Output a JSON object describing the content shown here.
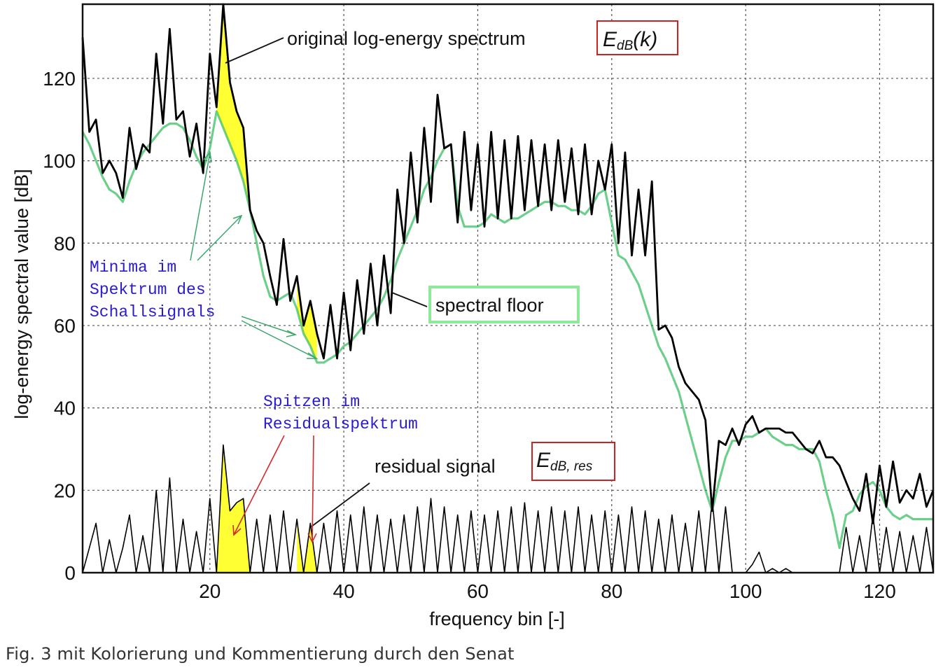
{
  "caption": "Fig. 3 mit Kolorierung und Kommentierung durch den Senat",
  "chart_data": {
    "type": "line",
    "xlabel": "frequency bin [-]",
    "ylabel": "log-energy spectral value [dB]",
    "xlim": [
      1,
      128
    ],
    "ylim": [
      0,
      138
    ],
    "xticks": [
      20,
      40,
      60,
      80,
      100,
      120
    ],
    "yticks": [
      0,
      20,
      40,
      60,
      80,
      100,
      120
    ],
    "grid": true,
    "series": [
      {
        "name": "original log-energy spectrum",
        "color": "#000000",
        "x": [
          1,
          2,
          3,
          4,
          5,
          6,
          7,
          8,
          9,
          10,
          11,
          12,
          13,
          14,
          15,
          16,
          17,
          18,
          19,
          20,
          21,
          22,
          23,
          24,
          25,
          26,
          27,
          28,
          29,
          30,
          31,
          32,
          33,
          34,
          35,
          36,
          37,
          38,
          39,
          40,
          41,
          42,
          43,
          44,
          45,
          46,
          47,
          48,
          49,
          50,
          51,
          52,
          53,
          54,
          55,
          56,
          57,
          58,
          59,
          60,
          61,
          62,
          63,
          64,
          65,
          66,
          67,
          68,
          69,
          70,
          71,
          72,
          73,
          74,
          75,
          76,
          77,
          78,
          79,
          80,
          81,
          82,
          83,
          84,
          85,
          86,
          87,
          88,
          89,
          90,
          91,
          92,
          93,
          94,
          95,
          96,
          97,
          98,
          99,
          100,
          101,
          102,
          103,
          104,
          105,
          106,
          107,
          108,
          109,
          110,
          111,
          112,
          113,
          114,
          115,
          116,
          117,
          118,
          119,
          120,
          121,
          122,
          123,
          124,
          125,
          126,
          127,
          128
        ],
        "y": [
          130,
          107,
          110,
          97,
          100,
          97,
          91,
          108,
          98,
          104,
          102,
          126,
          109,
          132,
          110,
          112,
          101,
          109,
          97,
          126,
          113,
          138,
          119,
          112,
          108,
          88,
          83,
          80,
          72,
          65,
          81,
          66,
          72,
          60,
          66,
          58,
          52,
          65,
          52,
          68,
          54,
          71,
          58,
          75,
          60,
          77,
          63,
          93,
          80,
          102,
          85,
          108,
          90,
          116,
          103,
          104,
          85,
          107,
          88,
          104,
          84,
          107,
          86,
          105,
          86,
          106,
          88,
          105,
          89,
          104,
          88,
          105,
          90,
          103,
          87,
          104,
          87,
          100,
          93,
          104,
          80,
          102,
          77,
          93,
          77,
          95,
          59,
          60,
          57,
          50,
          46,
          44,
          42,
          37,
          15,
          32,
          31,
          35,
          31,
          36,
          38,
          34,
          35,
          35,
          35,
          34,
          34,
          32,
          30,
          29,
          32,
          28,
          28,
          26,
          22,
          18,
          15,
          24,
          12,
          26,
          16,
          27,
          17,
          20,
          18,
          24,
          16,
          20
        ]
      },
      {
        "name": "spectral floor",
        "color": "#4de07a",
        "x": [
          1,
          2,
          3,
          4,
          5,
          6,
          7,
          8,
          9,
          10,
          11,
          12,
          13,
          14,
          15,
          16,
          17,
          18,
          19,
          20,
          21,
          22,
          23,
          24,
          25,
          26,
          27,
          28,
          29,
          30,
          31,
          32,
          33,
          34,
          35,
          36,
          37,
          38,
          39,
          40,
          41,
          42,
          43,
          44,
          45,
          46,
          47,
          48,
          49,
          50,
          51,
          52,
          53,
          54,
          55,
          56,
          57,
          58,
          59,
          60,
          61,
          62,
          63,
          64,
          65,
          66,
          67,
          68,
          69,
          70,
          71,
          72,
          73,
          74,
          75,
          76,
          77,
          78,
          79,
          80,
          81,
          82,
          83,
          84,
          85,
          86,
          87,
          88,
          89,
          90,
          91,
          92,
          93,
          94,
          95,
          96,
          97,
          98,
          99,
          100,
          101,
          102,
          103,
          104,
          105,
          106,
          107,
          108,
          109,
          110,
          111,
          112,
          113,
          114,
          115,
          116,
          117,
          118,
          119,
          120,
          121,
          122,
          123,
          124,
          125,
          126,
          127,
          128
        ],
        "y": [
          107,
          104,
          100,
          96,
          93,
          92,
          90,
          95,
          99,
          102,
          104,
          106,
          108,
          109,
          109,
          108,
          105,
          101,
          98,
          103,
          112,
          108,
          104,
          100,
          95,
          88,
          80,
          72,
          67,
          66,
          67,
          68,
          64,
          58,
          55,
          51,
          51,
          52,
          53,
          55,
          56,
          58,
          60,
          62,
          64,
          67,
          71,
          76,
          80,
          84,
          88,
          93,
          96,
          100,
          103,
          104,
          89,
          84,
          84,
          84,
          85,
          87,
          86,
          85,
          86,
          86,
          87,
          88,
          89,
          90,
          90,
          89,
          89,
          88,
          88,
          87,
          89,
          92,
          93,
          85,
          77,
          76,
          73,
          70,
          65,
          60,
          55,
          52,
          48,
          44,
          38,
          32,
          26,
          20,
          15,
          22,
          28,
          32,
          32,
          33,
          33,
          34,
          35,
          33,
          32,
          31,
          31,
          30,
          30,
          30,
          27,
          20,
          14,
          6,
          14,
          15,
          19,
          21,
          22,
          20,
          16,
          14,
          13,
          14,
          13,
          13,
          13,
          13
        ]
      },
      {
        "name": "residual signal",
        "color": "#000000",
        "x": [
          1,
          2,
          3,
          4,
          5,
          6,
          7,
          8,
          9,
          10,
          11,
          12,
          13,
          14,
          15,
          16,
          17,
          18,
          19,
          20,
          21,
          22,
          23,
          24,
          25,
          26,
          27,
          28,
          29,
          30,
          31,
          32,
          33,
          34,
          35,
          36,
          37,
          38,
          39,
          40,
          41,
          42,
          43,
          44,
          45,
          46,
          47,
          48,
          49,
          50,
          51,
          52,
          53,
          54,
          55,
          56,
          57,
          58,
          59,
          60,
          61,
          62,
          63,
          64,
          65,
          66,
          67,
          68,
          69,
          70,
          71,
          72,
          73,
          74,
          75,
          76,
          77,
          78,
          79,
          80,
          81,
          82,
          83,
          84,
          85,
          86,
          87,
          88,
          89,
          90,
          91,
          92,
          93,
          94,
          95,
          96,
          97,
          98,
          99,
          100,
          101,
          102,
          103,
          104,
          105,
          106,
          107,
          108,
          109,
          110,
          111,
          112,
          113,
          114,
          115,
          116,
          117,
          118,
          119,
          120,
          121,
          122,
          123,
          124,
          125,
          126,
          127,
          128
        ],
        "y": [
          0,
          6,
          12,
          0,
          8,
          0,
          6,
          14,
          0,
          9,
          0,
          20,
          0,
          23,
          0,
          13,
          0,
          10,
          0,
          18,
          0,
          31,
          15,
          17,
          18,
          0,
          13,
          0,
          14,
          0,
          15,
          0,
          13,
          0,
          12,
          0,
          12,
          0,
          15,
          0,
          14,
          0,
          16,
          0,
          14,
          0,
          13,
          0,
          14,
          0,
          16,
          0,
          18,
          0,
          16,
          0,
          14,
          0,
          15,
          0,
          14,
          0,
          15,
          0,
          16,
          0,
          17,
          0,
          15,
          0,
          16,
          0,
          15,
          0,
          16,
          0,
          14,
          0,
          15,
          0,
          14,
          0,
          16,
          0,
          15,
          0,
          13,
          0,
          14,
          0,
          12,
          0,
          15,
          0,
          18,
          0,
          16,
          0,
          0,
          0,
          2,
          5,
          0,
          1,
          0,
          1,
          0,
          0,
          0,
          0,
          0,
          0,
          0,
          0,
          11,
          0,
          9,
          0,
          14,
          0,
          11,
          0,
          10,
          0,
          9,
          0,
          11,
          0
        ]
      }
    ],
    "highlight_regions": [
      {
        "series": "original log-energy spectrum",
        "x_range": [
          21,
          26
        ],
        "color": "#ffff33"
      },
      {
        "series": "original log-energy spectrum",
        "x_range": [
          33,
          36
        ],
        "color": "#ffff33"
      },
      {
        "series": "residual signal",
        "x_range": [
          21,
          26
        ],
        "color": "#ffff33"
      },
      {
        "series": "residual signal",
        "x_range": [
          33,
          36
        ],
        "color": "#ffff33"
      }
    ],
    "annotations": {
      "original": {
        "text": "original log-energy spectrum",
        "eq_main": "E",
        "eq_sub": "dB",
        "eq_suffix": "(k)"
      },
      "floor": {
        "text": "spectral floor"
      },
      "residual": {
        "text": "residual signal",
        "eq_main": "E",
        "eq_sub": "dB, res"
      },
      "minima": [
        "Minima im",
        "Spektrum des",
        "Schallsignals"
      ],
      "peaks": [
        "Spitzen im",
        "Residualspektrum"
      ]
    }
  }
}
